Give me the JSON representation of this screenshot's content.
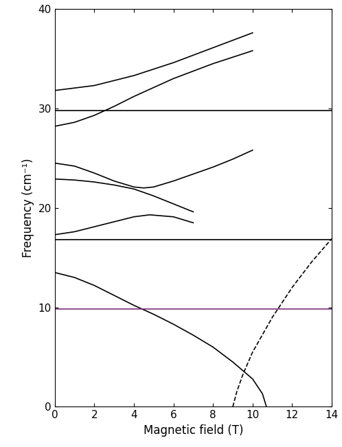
{
  "chart_data": {
    "type": "line",
    "x_label": "Magnetic field (T)",
    "y_label": "Frequency (cm⁻¹)",
    "xlim": [
      0,
      14
    ],
    "ylim": [
      0,
      40
    ],
    "xticks": [
      0,
      2,
      4,
      6,
      8,
      10,
      12,
      14
    ],
    "yticks": [
      0,
      10,
      20,
      30,
      40
    ],
    "grid": false,
    "series": [
      {
        "color": "#000000",
        "line_style": "solid",
        "x": [
          0,
          2,
          4,
          6,
          8,
          10
        ],
        "values": [
          31.8,
          32.3,
          33.3,
          34.6,
          36.1,
          37.6
        ]
      },
      {
        "color": "#000000",
        "line_style": "solid",
        "x": [
          0,
          1,
          2,
          3,
          4,
          6,
          8,
          10
        ],
        "values": [
          28.2,
          28.6,
          29.3,
          30.2,
          31.2,
          33.0,
          34.5,
          35.8
        ]
      },
      {
        "color": "#000000",
        "line_style": "solid",
        "x": [
          0,
          1,
          2,
          3,
          4,
          4.5,
          5,
          6,
          7,
          8,
          9,
          10
        ],
        "values": [
          24.5,
          24.2,
          23.5,
          22.7,
          22.1,
          22.0,
          22.1,
          22.7,
          23.4,
          24.1,
          24.9,
          25.8
        ]
      },
      {
        "color": "#000000",
        "line_style": "solid",
        "x": [
          0,
          1,
          2,
          3,
          4,
          5,
          6,
          7
        ],
        "values": [
          22.9,
          22.8,
          22.6,
          22.3,
          21.9,
          21.2,
          20.4,
          19.6
        ]
      },
      {
        "color": "#000000",
        "line_style": "solid",
        "x": [
          0,
          1,
          2,
          3,
          4,
          4.8,
          6,
          7
        ],
        "values": [
          17.3,
          17.6,
          18.1,
          18.6,
          19.1,
          19.3,
          19.1,
          18.5
        ]
      },
      {
        "color": "#000000",
        "line_style": "solid",
        "x": [
          0,
          1,
          2,
          3,
          4,
          5,
          6,
          7,
          8,
          9,
          10,
          10.5,
          10.7
        ],
        "values": [
          13.5,
          13.0,
          12.2,
          11.2,
          10.2,
          9.3,
          8.3,
          7.2,
          6.0,
          4.5,
          2.8,
          1.3,
          0
        ]
      },
      {
        "color": "#000000",
        "line_style": "dashed",
        "x": [
          9,
          9.2,
          9.5,
          10,
          11,
          12,
          13,
          14
        ],
        "values": [
          0,
          1.5,
          3.2,
          5.5,
          9.0,
          12.0,
          14.6,
          16.9
        ]
      },
      {
        "color": "#000000",
        "line_style": "solid",
        "x": [
          0,
          14
        ],
        "values": [
          29.8,
          29.8
        ]
      },
      {
        "color": "#000000",
        "line_style": "solid",
        "x": [
          0,
          14
        ],
        "values": [
          16.8,
          16.8
        ]
      },
      {
        "color": "#7b2f7e",
        "line_style": "solid",
        "x": [
          0,
          14
        ],
        "values": [
          9.8,
          9.8
        ]
      }
    ]
  }
}
